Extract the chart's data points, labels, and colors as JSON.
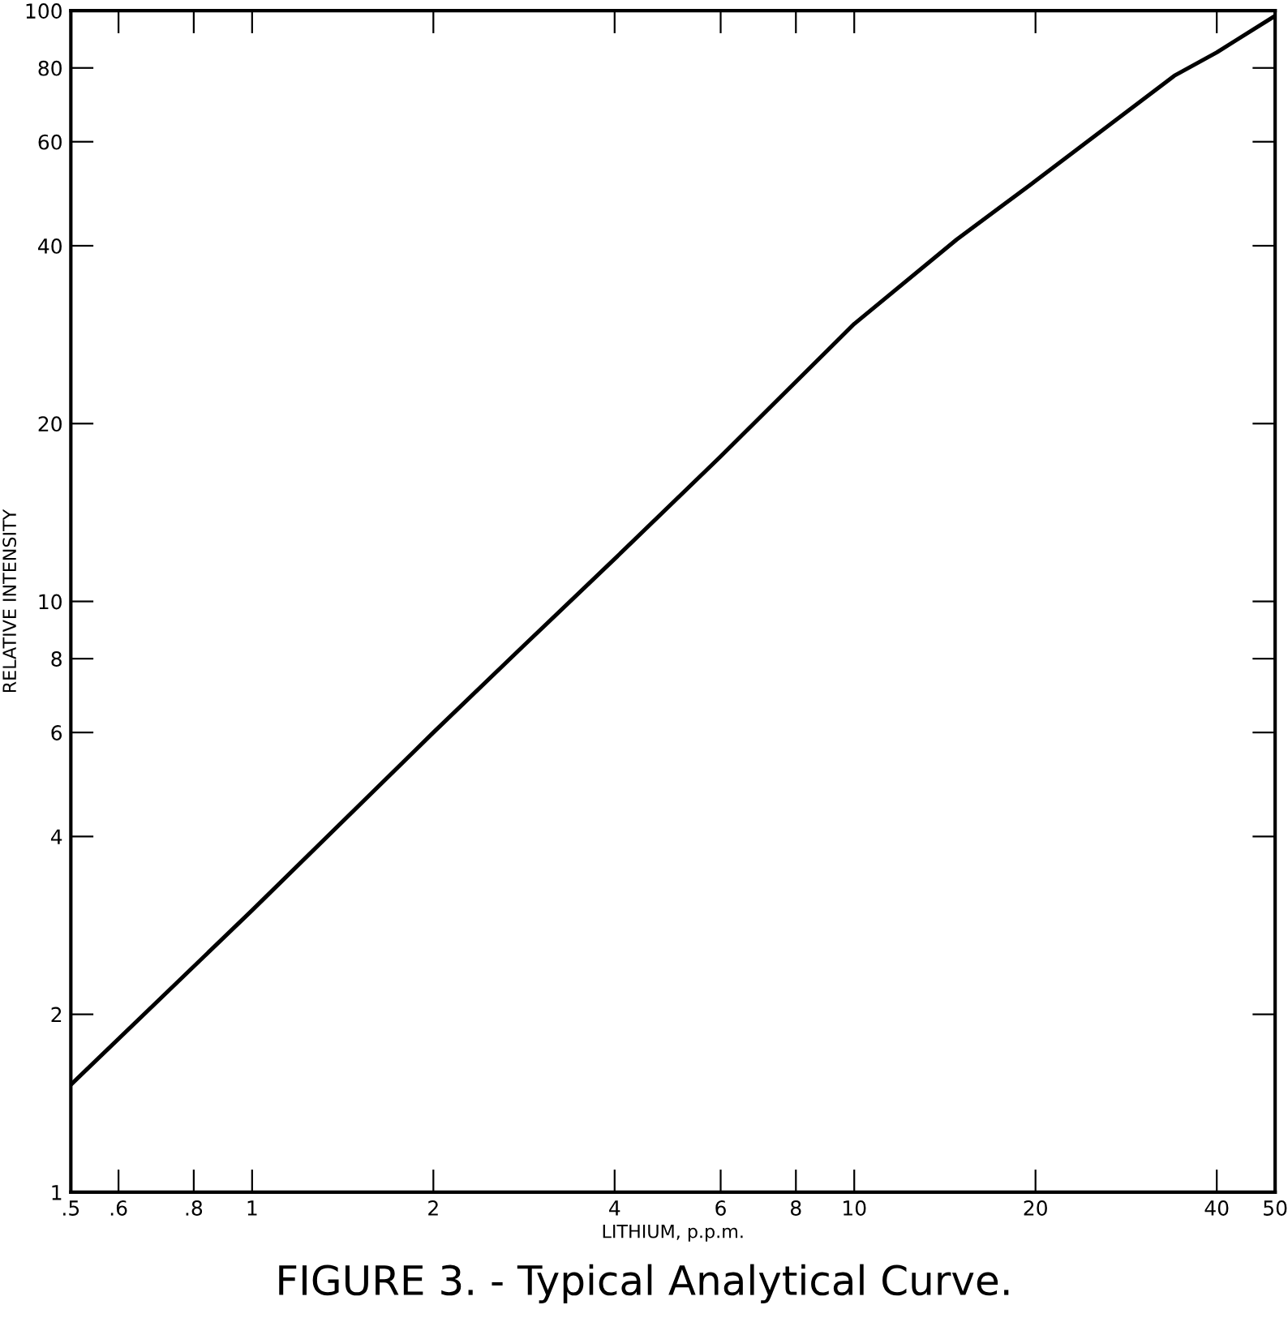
{
  "chart_data": {
    "type": "line",
    "title": "FIGURE 3. - Typical Analytical Curve.",
    "xlabel": "LITHIUM, p.p.m.",
    "ylabel": "RELATIVE INTENSITY",
    "log": "xy",
    "grid": false,
    "marker": "none",
    "line_style": "solid",
    "series": [
      {
        "color": "#000000",
        "x": [
          0.5,
          1,
          2,
          2.81,
          4,
          6,
          10,
          14.8,
          20,
          34,
          40,
          50
        ],
        "values": [
          1.52,
          3.0,
          6.0,
          8.37,
          11.8,
          17.6,
          29.5,
          41,
          51.5,
          77.6,
          85,
          98
        ]
      }
    ],
    "xlim": [
      0.5,
      50
    ],
    "ylim": [
      1,
      100
    ],
    "xticks": [
      {
        "value": 0.5,
        "label": ".5"
      },
      {
        "value": 0.6,
        "label": ".6"
      },
      {
        "value": 0.8,
        "label": ".8"
      },
      1,
      2,
      4,
      6,
      8,
      10,
      20,
      40,
      50
    ],
    "yticks": [
      1,
      2,
      4,
      6,
      8,
      10,
      20,
      40,
      60,
      80,
      100
    ]
  }
}
